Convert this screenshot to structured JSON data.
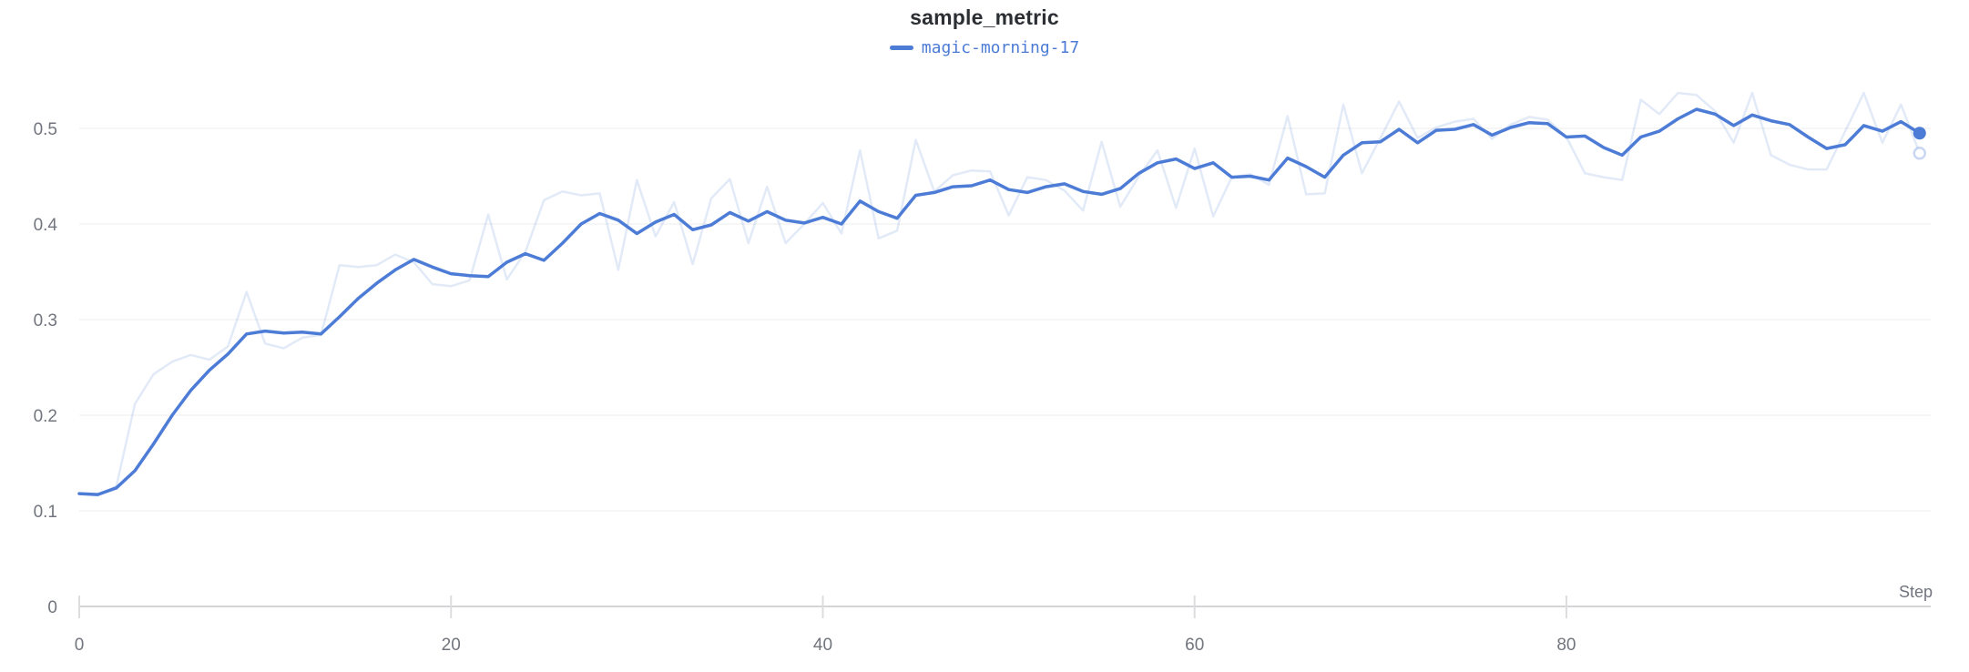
{
  "chart_data": {
    "type": "line",
    "title": "sample_metric",
    "xlabel": "Step",
    "ylabel": "",
    "x_ticks": [
      0,
      20,
      40,
      60,
      80
    ],
    "y_ticks": [
      0,
      0.1,
      0.2,
      0.3,
      0.4,
      0.5
    ],
    "xlim": [
      0,
      99.6
    ],
    "ylim": [
      0,
      0.5
    ],
    "grid": "horizontal-only",
    "legend_position": "top-center",
    "x_start": 0,
    "x_step": 1,
    "series": [
      {
        "name": "magic-morning-17",
        "role": "raw-unsmoothed",
        "color": "#4d7cd6",
        "opacity": 0.16,
        "line_width": 2.5,
        "end_marker": "open-circle",
        "values": [
          0.118,
          0.116,
          0.126,
          0.212,
          0.243,
          0.256,
          0.263,
          0.258,
          0.272,
          0.329,
          0.275,
          0.27,
          0.281,
          0.284,
          0.357,
          0.355,
          0.357,
          0.368,
          0.36,
          0.337,
          0.335,
          0.341,
          0.41,
          0.342,
          0.371,
          0.425,
          0.434,
          0.43,
          0.432,
          0.352,
          0.446,
          0.387,
          0.423,
          0.358,
          0.427,
          0.447,
          0.38,
          0.439,
          0.38,
          0.4,
          0.422,
          0.39,
          0.477,
          0.385,
          0.393,
          0.488,
          0.434,
          0.451,
          0.456,
          0.455,
          0.409,
          0.449,
          0.446,
          0.435,
          0.414,
          0.486,
          0.418,
          0.45,
          0.477,
          0.417,
          0.479,
          0.408,
          0.449,
          0.452,
          0.441,
          0.513,
          0.431,
          0.432,
          0.525,
          0.453,
          0.49,
          0.528,
          0.49,
          0.501,
          0.507,
          0.51,
          0.489,
          0.504,
          0.512,
          0.509,
          0.491,
          0.453,
          0.449,
          0.446,
          0.53,
          0.515,
          0.537,
          0.535,
          0.518,
          0.485,
          0.537,
          0.472,
          0.462,
          0.457,
          0.457,
          0.497,
          0.537,
          0.485,
          0.525,
          0.474
        ]
      },
      {
        "name": "magic-morning-17",
        "role": "smoothed",
        "color": "#4d7cd6",
        "opacity": 1,
        "line_width": 3.5,
        "end_marker": "dot",
        "values": [
          0.118,
          0.117,
          0.124,
          0.142,
          0.17,
          0.2,
          0.226,
          0.247,
          0.264,
          0.285,
          0.288,
          0.286,
          0.287,
          0.285,
          0.303,
          0.322,
          0.338,
          0.352,
          0.363,
          0.355,
          0.348,
          0.346,
          0.345,
          0.36,
          0.369,
          0.362,
          0.38,
          0.4,
          0.411,
          0.404,
          0.39,
          0.402,
          0.41,
          0.394,
          0.399,
          0.412,
          0.403,
          0.413,
          0.404,
          0.401,
          0.407,
          0.4,
          0.424,
          0.413,
          0.406,
          0.43,
          0.433,
          0.439,
          0.44,
          0.446,
          0.436,
          0.433,
          0.439,
          0.442,
          0.434,
          0.431,
          0.437,
          0.453,
          0.464,
          0.468,
          0.458,
          0.464,
          0.449,
          0.45,
          0.446,
          0.469,
          0.46,
          0.449,
          0.472,
          0.485,
          0.486,
          0.499,
          0.485,
          0.498,
          0.499,
          0.504,
          0.493,
          0.501,
          0.506,
          0.505,
          0.491,
          0.492,
          0.48,
          0.472,
          0.491,
          0.497,
          0.51,
          0.52,
          0.515,
          0.503,
          0.514,
          0.508,
          0.504,
          0.491,
          0.479,
          0.483,
          0.503,
          0.497,
          0.507,
          0.495
        ]
      }
    ],
    "colors": {
      "accent_blue": "#4d7cd6",
      "title_text": "#2b2e33",
      "tick_label": "#72757e",
      "axis_line": "#d5d5d8",
      "tick_mark": "#dddde0",
      "gridline": "#ededef",
      "background": "#ffffff"
    }
  }
}
